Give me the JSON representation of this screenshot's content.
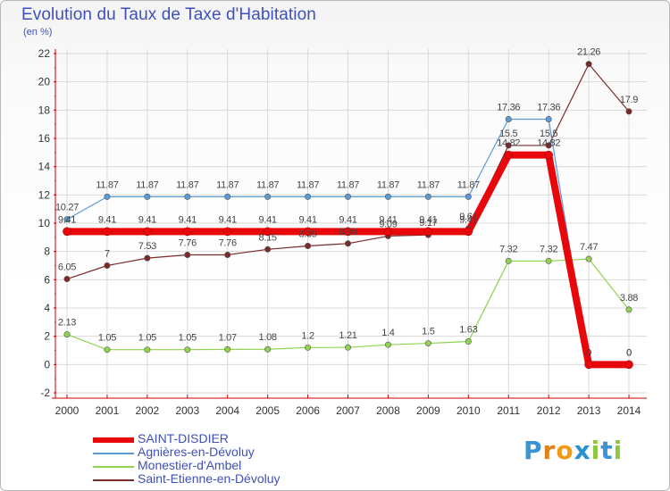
{
  "chart_data": {
    "type": "line",
    "title": "Evolution du Taux de Taxe d'Habitation",
    "ylabel": "(en %)",
    "xlabel": "",
    "categories": [
      "2000",
      "2001",
      "2002",
      "2003",
      "2004",
      "2005",
      "2006",
      "2007",
      "2008",
      "2009",
      "2010",
      "2011",
      "2012",
      "2013",
      "2014"
    ],
    "ylim": [
      -2,
      22
    ],
    "yticks": [
      -2,
      0,
      2,
      4,
      6,
      8,
      10,
      12,
      14,
      16,
      18,
      20,
      22
    ],
    "grid": true,
    "legend_position": "bottom-left",
    "series": [
      {
        "name": "SAINT-DISDIER",
        "color": "#e8080c",
        "values": [
          9.41,
          9.41,
          9.41,
          9.41,
          9.41,
          9.41,
          9.41,
          9.41,
          9.41,
          9.41,
          9.41,
          14.82,
          14.82,
          0,
          0
        ],
        "labels": [
          "9.41",
          "9.41",
          "9.41",
          "9.41",
          "9.41",
          "9.41",
          "9.41",
          "9.41",
          "9.41",
          "9.41",
          "9.41",
          "14.82",
          "14.82",
          "0",
          "0"
        ]
      },
      {
        "name": "Agnières-en-Dévoluy",
        "color": "#5b9bd5",
        "values": [
          10.27,
          11.87,
          11.87,
          11.87,
          11.87,
          11.87,
          11.87,
          11.87,
          11.87,
          11.87,
          11.87,
          17.36,
          17.36,
          0,
          0
        ],
        "labels": [
          "10.27",
          "11.87",
          "11.87",
          "11.87",
          "11.87",
          "11.87",
          "11.87",
          "11.87",
          "11.87",
          "11.87",
          "11.87",
          "17.36",
          "17.36",
          "0",
          "0"
        ]
      },
      {
        "name": "Monestier-d'Ambel",
        "color": "#8fd34f",
        "values": [
          2.13,
          1.05,
          1.05,
          1.05,
          1.07,
          1.08,
          1.2,
          1.21,
          1.4,
          1.5,
          1.63,
          7.32,
          7.32,
          7.47,
          3.88
        ],
        "labels": [
          "2.13",
          "1.05",
          "1.05",
          "1.05",
          "1.07",
          "1.08",
          "1.2",
          "1.21",
          "1.4",
          "1.5",
          "1.63",
          "7.32",
          "7.32",
          "7.47",
          "3.88"
        ]
      },
      {
        "name": "Saint-Etienne-en-Dévoluy",
        "color": "#7a2a2a",
        "values": [
          6.05,
          7,
          7.53,
          7.76,
          7.76,
          8.15,
          8.39,
          8.56,
          9.09,
          9.17,
          9.61,
          15.5,
          15.5,
          21.26,
          17.9
        ],
        "labels": [
          "6.05",
          "7",
          "7.53",
          "7.76",
          "7.76",
          "8.15",
          "8.39",
          "8.56",
          "9.09",
          "9.17",
          "9.61",
          "15.5",
          "15.5",
          "21.26",
          "17.9"
        ]
      }
    ]
  },
  "logo": {
    "letters": [
      "P",
      "r",
      "o",
      "x",
      "i",
      "t",
      "i"
    ]
  }
}
